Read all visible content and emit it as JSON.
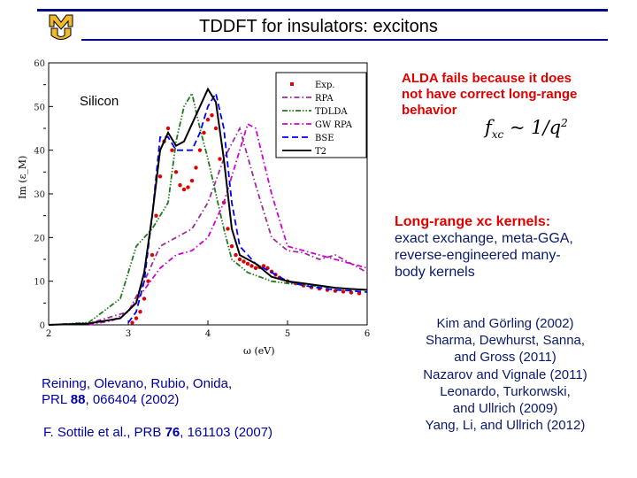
{
  "header": {
    "title": "TDDFT for insulators: excitons",
    "logo_text": "MU",
    "accent_color": "#00008B",
    "logo_color": "#F1B82D"
  },
  "chart_data": {
    "type": "line",
    "title": "Silicon",
    "xlabel": "ω (eV)",
    "ylabel": "Im (ε_M)",
    "xlim": [
      2,
      6
    ],
    "ylim": [
      0,
      60
    ],
    "xticks": [
      "2",
      "3",
      "4",
      "5",
      "6"
    ],
    "yticks": [
      "0",
      "10",
      "20",
      "30",
      "40",
      "50",
      "60"
    ],
    "legend_position": "top-right",
    "series": [
      {
        "name": "Exp.",
        "color": "#e00000",
        "style": "dots",
        "x": [
          3.05,
          3.1,
          3.15,
          3.2,
          3.25,
          3.3,
          3.35,
          3.4,
          3.45,
          3.5,
          3.55,
          3.6,
          3.65,
          3.7,
          3.75,
          3.8,
          3.85,
          3.9,
          3.95,
          4.0,
          4.05,
          4.1,
          4.15,
          4.2,
          4.25,
          4.3,
          4.35,
          4.4,
          4.45,
          4.5,
          4.55,
          4.6,
          4.65,
          4.7,
          4.75,
          4.8,
          4.85,
          4.9,
          5.0,
          5.1,
          5.2,
          5.3,
          5.4,
          5.5,
          5.6,
          5.7,
          5.8,
          5.9
        ],
        "y": [
          0.5,
          1.5,
          3,
          6,
          10,
          16,
          25,
          34,
          42,
          45,
          40,
          35,
          32,
          31,
          31.5,
          33,
          36,
          40,
          44,
          47,
          48,
          45,
          38,
          28,
          22,
          18,
          16,
          15,
          14.5,
          14,
          13.5,
          13,
          13.2,
          13.5,
          13,
          12.2,
          11.5,
          10.8,
          10,
          9.5,
          9,
          8.6,
          8.3,
          8,
          7.8,
          7.6,
          7.4,
          7.2
        ]
      },
      {
        "name": "RPA",
        "color": "#9b2d9b",
        "style": "dash-dot",
        "x": [
          2.0,
          2.5,
          3.0,
          3.2,
          3.4,
          3.6,
          3.8,
          4.0,
          4.2,
          4.4,
          4.6,
          4.8,
          5.0,
          5.2,
          5.4,
          5.6,
          5.8,
          6.0
        ],
        "y": [
          0,
          0.3,
          3,
          10,
          18,
          20,
          22,
          28,
          38,
          45,
          32,
          20,
          17,
          16.5,
          15,
          16,
          14,
          12
        ]
      },
      {
        "name": "TDLDA",
        "color": "#1f7a1f",
        "style": "dash-dot-dot",
        "x": [
          2.0,
          2.5,
          2.9,
          3.1,
          3.3,
          3.5,
          3.6,
          3.7,
          3.8,
          3.9,
          4.0,
          4.1,
          4.2,
          4.3,
          4.5,
          4.8,
          5.0,
          5.3,
          5.6,
          6.0
        ],
        "y": [
          0,
          0.5,
          6,
          18,
          22,
          28,
          42,
          50,
          53,
          45,
          38,
          30,
          22,
          15,
          12,
          10,
          9.5,
          9,
          8.5,
          8
        ]
      },
      {
        "name": "GW RPA",
        "color": "#d000d0",
        "style": "dash-dot",
        "x": [
          2.5,
          2.8,
          3.0,
          3.2,
          3.4,
          3.6,
          3.8,
          4.0,
          4.2,
          4.4,
          4.5,
          4.6,
          4.8,
          5.0,
          5.2,
          5.4,
          5.6,
          5.8,
          6.0
        ],
        "y": [
          0,
          1,
          3,
          8,
          13,
          16,
          17,
          20,
          28,
          40,
          46,
          45,
          30,
          18,
          17,
          16,
          15,
          14,
          13
        ]
      },
      {
        "name": "BSE",
        "color": "#0000ff",
        "style": "dashed",
        "x": [
          3.0,
          3.1,
          3.2,
          3.3,
          3.4,
          3.5,
          3.6,
          3.7,
          3.8,
          3.9,
          4.0,
          4.1,
          4.2,
          4.3,
          4.4,
          4.6,
          4.8,
          5.0,
          5.2,
          5.4,
          5.6,
          5.8,
          6.0
        ],
        "y": [
          0.5,
          3,
          10,
          25,
          43,
          43,
          40,
          40,
          40,
          44,
          50,
          53,
          45,
          28,
          18,
          14,
          12,
          10,
          9,
          8.5,
          8,
          7.8,
          7.5
        ]
      },
      {
        "name": "T2",
        "color": "#000000",
        "style": "solid",
        "x": [
          2.0,
          2.5,
          2.9,
          3.1,
          3.2,
          3.3,
          3.4,
          3.5,
          3.6,
          3.7,
          3.8,
          3.9,
          4.0,
          4.1,
          4.2,
          4.3,
          4.4,
          4.6,
          4.8,
          5.0,
          5.2,
          5.4,
          5.6,
          5.8,
          6.0
        ],
        "y": [
          0,
          0.3,
          1.5,
          5,
          12,
          25,
          40,
          44,
          41,
          42,
          46,
          50,
          54,
          51,
          38,
          22,
          16,
          14,
          11,
          10,
          9.5,
          9,
          8.5,
          8.2,
          8
        ]
      }
    ]
  },
  "text": {
    "alda_line1": "ALDA fails because it does",
    "alda_line2": "not have correct long-range",
    "alda_line3": "behavior",
    "formula_main": "f",
    "formula_sub": "xc",
    "formula_sim": " ~ 1/q",
    "formula_sup": "2",
    "lr_heading": "Long-range xc kernels:",
    "lr_line1": "exact exchange, meta-GGA,",
    "lr_line2": "reverse-engineered many-",
    "lr_line3": "body kernels",
    "reining_line1": "Reining, Olevano, Rubio, Onida,",
    "reining_prl": "PRL ",
    "reining_vol": "88",
    "reining_rest": ", 066404 (2002)",
    "sottile_pre": "F. Sottile et al., PRB ",
    "sottile_vol": "76",
    "sottile_rest": ", 161103 (2007)"
  },
  "references": [
    "Kim and Görling (2002)",
    "Sharma, Dewhurst, Sanna,",
    "and Gross (2011)",
    "Nazarov and Vignale (2011)",
    "Leonardo, Turkorwski,",
    "and Ullrich (2009)",
    "Yang, Li, and Ullrich (2012)"
  ]
}
